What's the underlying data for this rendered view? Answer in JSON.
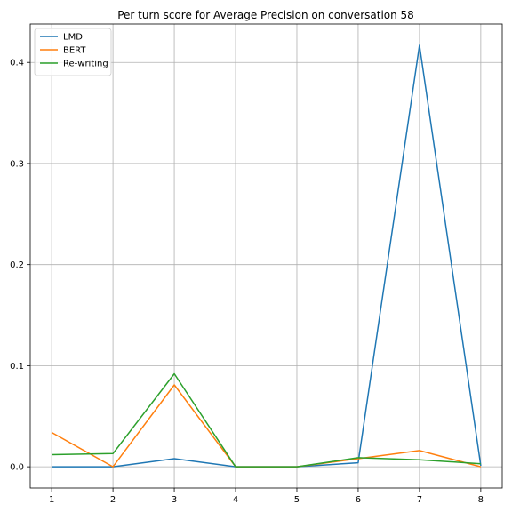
{
  "chart_data": {
    "type": "line",
    "title": "Per turn score for Average Precision on conversation 58",
    "xlabel": "",
    "ylabel": "",
    "x": [
      1,
      2,
      3,
      4,
      5,
      6,
      7,
      8
    ],
    "xticks": [
      1,
      2,
      3,
      4,
      5,
      6,
      7,
      8
    ],
    "yticks": [
      0.0,
      0.1,
      0.2,
      0.3,
      0.4
    ],
    "ytick_labels": [
      "0.0",
      "0.1",
      "0.2",
      "0.3",
      "0.4"
    ],
    "xlim": [
      0.65,
      8.35
    ],
    "ylim": [
      -0.021,
      0.438
    ],
    "grid": true,
    "legend_position": "top-left",
    "series": [
      {
        "name": "LMD",
        "color": "#1f77b4",
        "values": [
          0.0,
          0.0,
          0.008,
          0.0,
          0.0,
          0.004,
          0.417,
          0.001
        ]
      },
      {
        "name": "BERT",
        "color": "#ff7f0e",
        "values": [
          0.034,
          0.0,
          0.081,
          0.0,
          0.0,
          0.008,
          0.016,
          0.0
        ]
      },
      {
        "name": "Re-writing",
        "color": "#2ca02c",
        "values": [
          0.012,
          0.013,
          0.092,
          0.0,
          0.0,
          0.009,
          0.007,
          0.003
        ]
      }
    ]
  }
}
